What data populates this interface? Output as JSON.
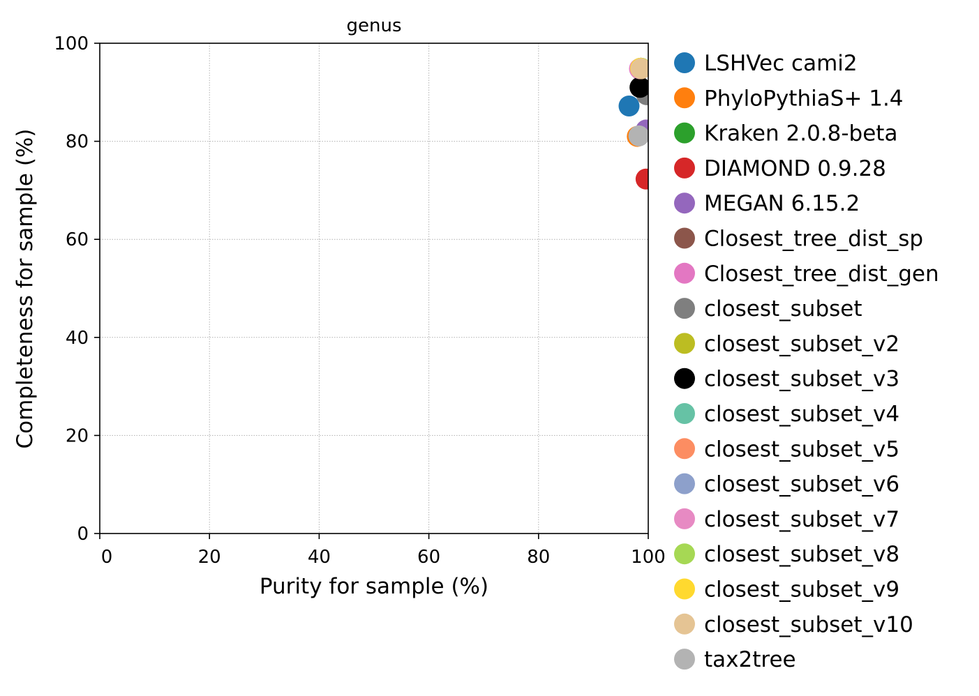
{
  "chart_data": {
    "type": "scatter",
    "title": "genus",
    "xlabel": "Purity for sample (%)",
    "ylabel": "Completeness for sample (%)",
    "xlim": [
      0,
      100
    ],
    "ylim": [
      0,
      100
    ],
    "xticks": [
      0,
      20,
      40,
      60,
      80,
      100
    ],
    "yticks": [
      0,
      20,
      40,
      60,
      80,
      100
    ],
    "grid": true,
    "legend_position": "outside-right",
    "series": [
      {
        "name": "LSHVec cami2",
        "color": "#1f77b4",
        "x": 96.5,
        "y": 87.2
      },
      {
        "name": "PhyloPythiaS+ 1.4",
        "color": "#ff7f0e",
        "x": 98.0,
        "y": 81.0
      },
      {
        "name": "Kraken 2.0.8-beta",
        "color": "#2ca02c",
        "x": 98.7,
        "y": 94.9
      },
      {
        "name": "DIAMOND 0.9.28",
        "color": "#d62728",
        "x": 99.6,
        "y": 72.3
      },
      {
        "name": "MEGAN 6.15.2",
        "color": "#9467bd",
        "x": 99.6,
        "y": 82.3
      },
      {
        "name": "Closest_tree_dist_sp",
        "color": "#8c564b",
        "x": 98.5,
        "y": 94.7
      },
      {
        "name": "Closest_tree_dist_gen",
        "color": "#e377c2",
        "x": 98.4,
        "y": 94.8
      },
      {
        "name": "closest_subset",
        "color": "#7f7f7f",
        "x": 99.7,
        "y": 89.5
      },
      {
        "name": "closest_subset_v2",
        "color": "#bcbd22",
        "x": 98.6,
        "y": 94.9
      },
      {
        "name": "closest_subset_v3",
        "color": "#000000",
        "x": 98.5,
        "y": 91.0
      },
      {
        "name": "closest_subset_v4",
        "color": "#66c2a5",
        "x": 98.7,
        "y": 94.9
      },
      {
        "name": "closest_subset_v5",
        "color": "#fc8d62",
        "x": 98.6,
        "y": 94.8
      },
      {
        "name": "closest_subset_v6",
        "color": "#8da0cb",
        "x": 98.6,
        "y": 94.9
      },
      {
        "name": "closest_subset_v7",
        "color": "#e78ac3",
        "x": 98.5,
        "y": 94.8
      },
      {
        "name": "closest_subset_v8",
        "color": "#a6d854",
        "x": 98.7,
        "y": 94.9
      },
      {
        "name": "closest_subset_v9",
        "color": "#ffd92f",
        "x": 98.6,
        "y": 94.9
      },
      {
        "name": "closest_subset_v10",
        "color": "#e5c494",
        "x": 98.7,
        "y": 94.8
      },
      {
        "name": "tax2tree",
        "color": "#b3b3b3",
        "x": 98.3,
        "y": 81.1
      }
    ]
  }
}
